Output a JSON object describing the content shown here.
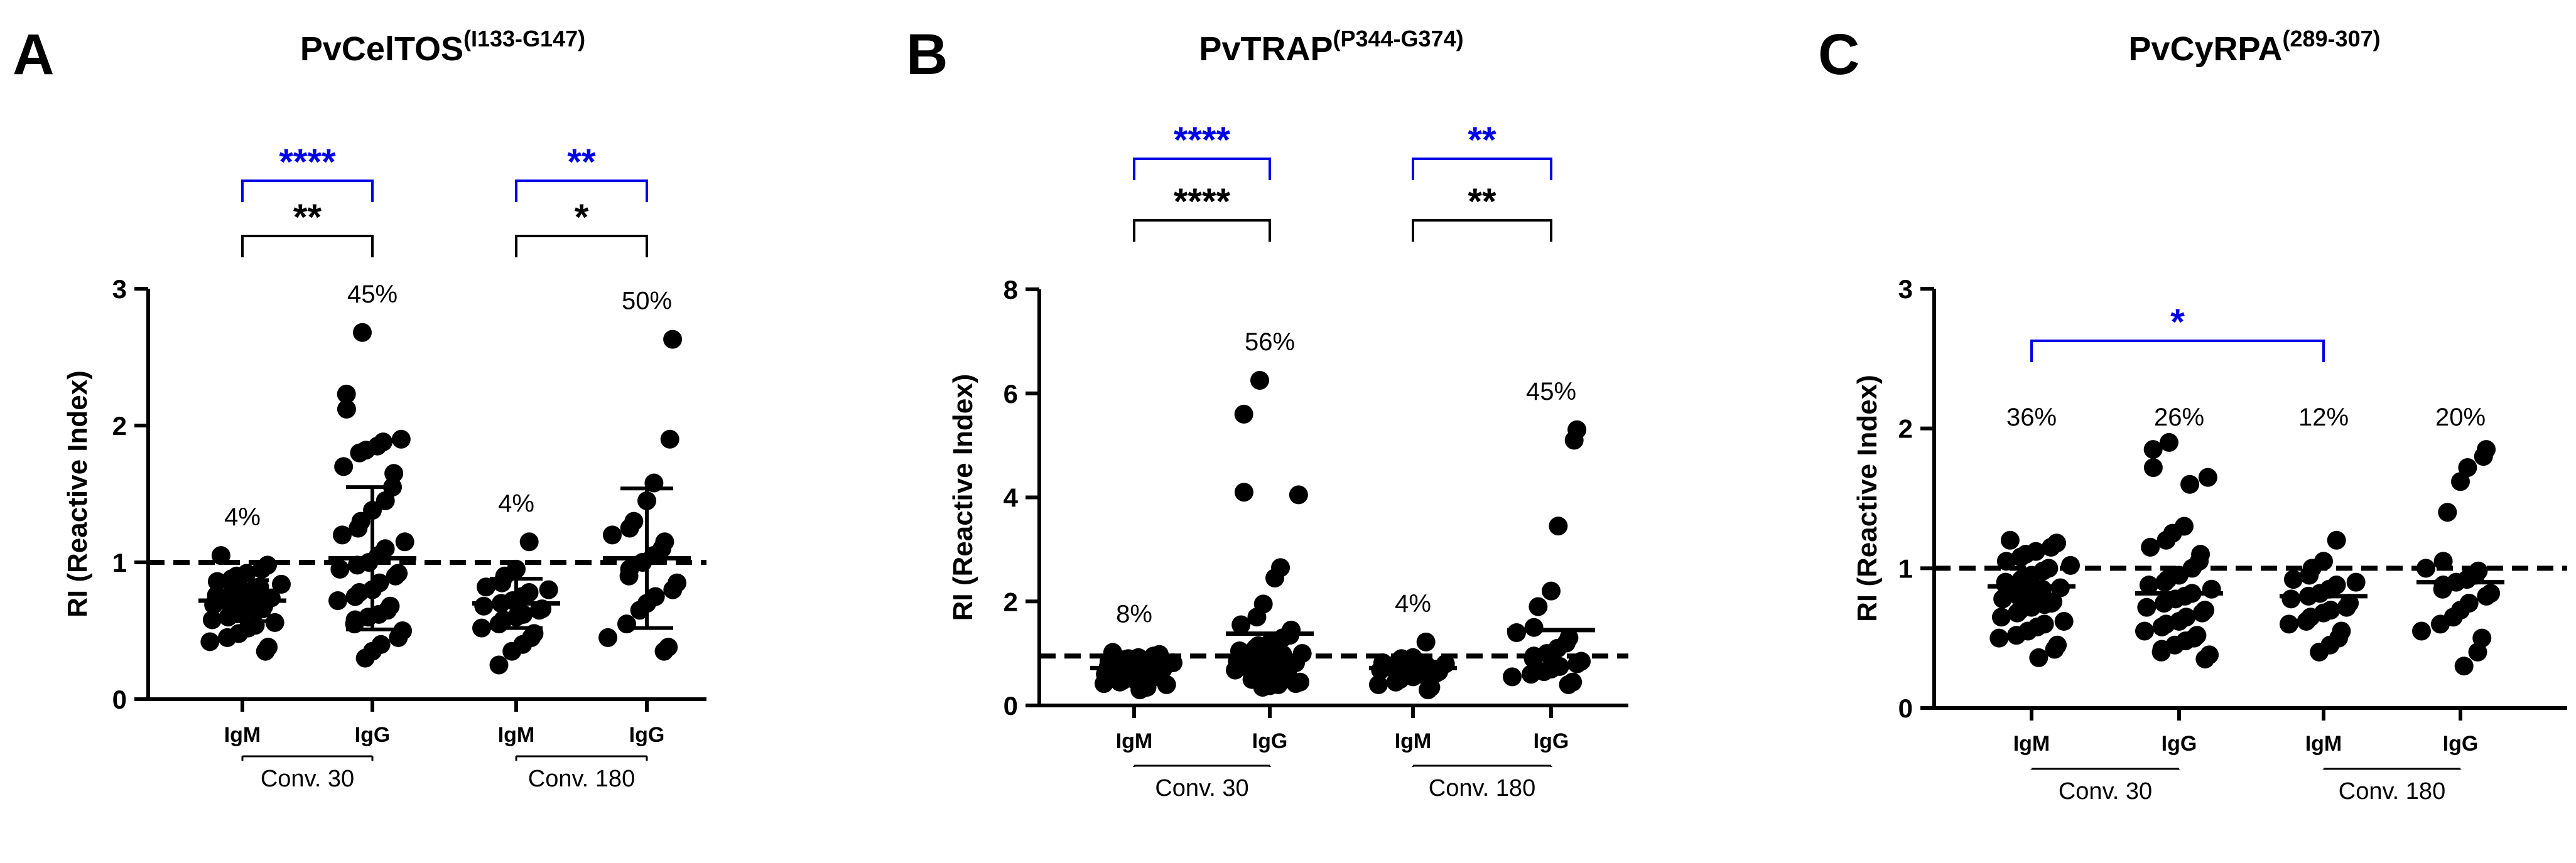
{
  "colors": {
    "ink": "#000000",
    "sig_blue": "#0000e6",
    "background": "#ffffff"
  },
  "chart_data": [
    {
      "type": "scatter",
      "panel": "A",
      "title": "PvCelTOS",
      "title_sup": "(I133-G147)",
      "ylabel": "RI (Reactive Index)",
      "xlabel": "",
      "ylim": [
        0,
        3
      ],
      "yticks": [
        "0",
        "1",
        "2",
        "3"
      ],
      "cutoff": 1.0,
      "categories": [
        "IgM",
        "IgG",
        "IgM",
        "IgG"
      ],
      "groups": [
        {
          "label": "Conv. 30",
          "cats": [
            0,
            1
          ]
        },
        {
          "label": "Conv. 180",
          "cats": [
            2,
            3
          ]
        }
      ],
      "percent_labels": [
        "4%",
        "45%",
        "4%",
        "50%"
      ],
      "means": [
        0.72,
        1.03,
        0.7,
        1.03
      ],
      "sds": [
        0.15,
        0.52,
        0.18,
        0.51
      ],
      "series": [
        {
          "name": "Conv. 30 IgM",
          "values": [
            1.05,
            0.98,
            0.95,
            0.92,
            0.9,
            0.88,
            0.86,
            0.84,
            0.82,
            0.8,
            0.79,
            0.78,
            0.76,
            0.75,
            0.74,
            0.73,
            0.72,
            0.71,
            0.7,
            0.69,
            0.68,
            0.66,
            0.65,
            0.64,
            0.62,
            0.6,
            0.58,
            0.56,
            0.54,
            0.52,
            0.48,
            0.45,
            0.42,
            0.38,
            0.35
          ]
        },
        {
          "name": "Conv. 30 IgG",
          "values": [
            2.68,
            2.23,
            2.12,
            1.9,
            1.88,
            1.85,
            1.82,
            1.8,
            1.7,
            1.65,
            1.55,
            1.45,
            1.38,
            1.3,
            1.25,
            1.2,
            1.15,
            1.1,
            1.05,
            1.0,
            0.98,
            0.95,
            0.92,
            0.9,
            0.85,
            0.8,
            0.78,
            0.75,
            0.72,
            0.68,
            0.65,
            0.62,
            0.6,
            0.58,
            0.55,
            0.5,
            0.45,
            0.4,
            0.35,
            0.3
          ]
        },
        {
          "name": "Conv. 180 IgM",
          "values": [
            1.15,
            0.95,
            0.9,
            0.85,
            0.82,
            0.8,
            0.78,
            0.75,
            0.72,
            0.7,
            0.68,
            0.66,
            0.65,
            0.62,
            0.6,
            0.58,
            0.55,
            0.52,
            0.48,
            0.45,
            0.4,
            0.35,
            0.25
          ]
        },
        {
          "name": "Conv. 180 IgG",
          "values": [
            2.63,
            1.9,
            1.58,
            1.45,
            1.3,
            1.25,
            1.2,
            1.15,
            1.1,
            1.05,
            1.0,
            0.95,
            0.9,
            0.85,
            0.8,
            0.75,
            0.7,
            0.65,
            0.55,
            0.45,
            0.38,
            0.35
          ]
        }
      ],
      "significance": [
        {
          "from": 0,
          "to": 1,
          "label": "**",
          "color": "black",
          "level": 0
        },
        {
          "from": 0,
          "to": 1,
          "label": "****",
          "color": "blue",
          "level": 1
        },
        {
          "from": 2,
          "to": 3,
          "label": "*",
          "color": "black",
          "level": 0
        },
        {
          "from": 2,
          "to": 3,
          "label": "**",
          "color": "blue",
          "level": 1
        }
      ]
    },
    {
      "type": "scatter",
      "panel": "B",
      "title": "PvTRAP",
      "title_sup": "(P344-G374)",
      "ylabel": "RI (Reactive Index)",
      "xlabel": "",
      "ylim": [
        0,
        8
      ],
      "yticks": [
        "0",
        "2",
        "4",
        "6",
        "8"
      ],
      "cutoff": 0.95,
      "categories": [
        "IgM",
        "IgG",
        "IgM",
        "IgG"
      ],
      "groups": [
        {
          "label": "Conv. 30",
          "cats": [
            0,
            1
          ]
        },
        {
          "label": "Conv. 180",
          "cats": [
            2,
            3
          ]
        }
      ],
      "percent_labels": [
        "8%",
        "56%",
        "4%",
        "45%"
      ],
      "means": [
        0.72,
        1.38,
        0.72,
        1.45
      ],
      "sds": [
        0.15,
        0.0,
        0.12,
        0.0
      ],
      "series": [
        {
          "name": "Conv. 30 IgM",
          "values": [
            1.02,
            0.98,
            0.95,
            0.92,
            0.9,
            0.88,
            0.85,
            0.82,
            0.8,
            0.78,
            0.76,
            0.75,
            0.74,
            0.72,
            0.7,
            0.68,
            0.66,
            0.65,
            0.62,
            0.6,
            0.58,
            0.55,
            0.52,
            0.5,
            0.48,
            0.45,
            0.42,
            0.4,
            0.35,
            0.3
          ]
        },
        {
          "name": "Conv. 30 IgG",
          "values": [
            6.25,
            5.6,
            4.1,
            4.05,
            2.65,
            2.45,
            1.95,
            1.7,
            1.55,
            1.45,
            1.35,
            1.3,
            1.2,
            1.15,
            1.1,
            1.05,
            1.0,
            0.98,
            0.95,
            0.9,
            0.88,
            0.85,
            0.82,
            0.8,
            0.78,
            0.75,
            0.72,
            0.7,
            0.68,
            0.65,
            0.62,
            0.6,
            0.58,
            0.55,
            0.5,
            0.45,
            0.42,
            0.4,
            0.38,
            0.35
          ]
        },
        {
          "name": "Conv. 180 IgM",
          "values": [
            1.22,
            0.92,
            0.9,
            0.85,
            0.82,
            0.8,
            0.78,
            0.75,
            0.72,
            0.7,
            0.68,
            0.65,
            0.62,
            0.6,
            0.55,
            0.5,
            0.45,
            0.4,
            0.35,
            0.3
          ]
        },
        {
          "name": "Conv. 180 IgG",
          "values": [
            5.3,
            5.1,
            3.45,
            2.2,
            1.9,
            1.5,
            1.4,
            1.3,
            1.2,
            1.1,
            1.0,
            0.95,
            0.9,
            0.85,
            0.8,
            0.75,
            0.7,
            0.65,
            0.6,
            0.55,
            0.45,
            0.4
          ]
        }
      ],
      "significance": [
        {
          "from": 0,
          "to": 1,
          "label": "****",
          "color": "black",
          "level": 0
        },
        {
          "from": 0,
          "to": 1,
          "label": "****",
          "color": "blue",
          "level": 1
        },
        {
          "from": 2,
          "to": 3,
          "label": "**",
          "color": "black",
          "level": 0
        },
        {
          "from": 2,
          "to": 3,
          "label": "**",
          "color": "blue",
          "level": 1
        }
      ]
    },
    {
      "type": "scatter",
      "panel": "C",
      "title": "PvCyRPA",
      "title_sup": "(289-307)",
      "ylabel": "RI (Reactive Index)",
      "xlabel": "",
      "ylim": [
        0,
        3
      ],
      "yticks": [
        "0",
        "1",
        "2",
        "3"
      ],
      "cutoff": 1.0,
      "categories": [
        "IgM",
        "IgG",
        "IgM",
        "IgG"
      ],
      "groups": [
        {
          "label": "Conv. 30",
          "cats": [
            0,
            1
          ]
        },
        {
          "label": "Conv. 180",
          "cats": [
            2,
            3
          ]
        }
      ],
      "percent_labels": [
        "36%",
        "26%",
        "12%",
        "20%"
      ],
      "means": [
        0.87,
        0.82,
        0.8,
        0.9
      ],
      "sds": [
        0.0,
        0.0,
        0.0,
        0.0
      ],
      "series": [
        {
          "name": "Conv. 30 IgM",
          "values": [
            1.2,
            1.18,
            1.15,
            1.12,
            1.1,
            1.08,
            1.05,
            1.02,
            1.0,
            0.98,
            0.95,
            0.92,
            0.9,
            0.88,
            0.86,
            0.85,
            0.84,
            0.82,
            0.8,
            0.78,
            0.76,
            0.75,
            0.74,
            0.72,
            0.7,
            0.68,
            0.65,
            0.62,
            0.6,
            0.58,
            0.55,
            0.52,
            0.5,
            0.45,
            0.42,
            0.36
          ]
        },
        {
          "name": "Conv. 30 IgG",
          "values": [
            1.9,
            1.85,
            1.72,
            1.65,
            1.6,
            1.3,
            1.25,
            1.2,
            1.15,
            1.1,
            1.05,
            1.0,
            0.95,
            0.92,
            0.9,
            0.88,
            0.85,
            0.82,
            0.8,
            0.78,
            0.75,
            0.72,
            0.7,
            0.68,
            0.65,
            0.62,
            0.6,
            0.58,
            0.55,
            0.52,
            0.5,
            0.48,
            0.45,
            0.42,
            0.4,
            0.38,
            0.35
          ]
        },
        {
          "name": "Conv. 180 IgM",
          "values": [
            1.2,
            1.05,
            1.0,
            0.95,
            0.92,
            0.9,
            0.88,
            0.85,
            0.82,
            0.8,
            0.78,
            0.75,
            0.72,
            0.7,
            0.68,
            0.65,
            0.62,
            0.6,
            0.55,
            0.5,
            0.45,
            0.4
          ]
        },
        {
          "name": "Conv. 180 IgG",
          "values": [
            1.85,
            1.8,
            1.72,
            1.62,
            1.4,
            1.05,
            1.0,
            0.98,
            0.95,
            0.92,
            0.9,
            0.88,
            0.85,
            0.82,
            0.8,
            0.75,
            0.7,
            0.65,
            0.6,
            0.55,
            0.5,
            0.4,
            0.3
          ]
        }
      ],
      "significance": [
        {
          "from": 0,
          "to": 2,
          "label": "*",
          "color": "blue",
          "level": 0
        }
      ]
    }
  ]
}
